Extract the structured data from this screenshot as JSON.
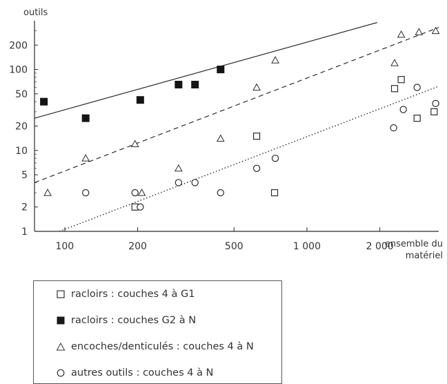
{
  "chart_data": {
    "type": "scatter",
    "ylabel": "outils",
    "xlabel_lines": [
      "ensemble du",
      "matériel"
    ],
    "xscale": "log",
    "yscale": "log",
    "xlim": [
      75,
      3500
    ],
    "ylim": [
      1,
      400
    ],
    "x_ticks": [
      {
        "value": 100,
        "label": "100"
      },
      {
        "value": 200,
        "label": "200"
      },
      {
        "value": 500,
        "label": "500"
      },
      {
        "value": 1000,
        "label": "1 000"
      },
      {
        "value": 2000,
        "label": "2 000"
      }
    ],
    "y_ticks": [
      {
        "value": 1,
        "label": "1"
      },
      {
        "value": 2,
        "label": "2"
      },
      {
        "value": 5,
        "label": "5"
      },
      {
        "value": 10,
        "label": "10"
      },
      {
        "value": 20,
        "label": "20"
      },
      {
        "value": 50,
        "label": "50"
      },
      {
        "value": 100,
        "label": "100"
      },
      {
        "value": 200,
        "label": "200"
      }
    ],
    "grid": false,
    "legend_position": "bottom-left",
    "series": [
      {
        "name": "racloirs : couches 4 à G1",
        "marker": "open-square",
        "points": [
          [
            195,
            2
          ],
          [
            620,
            15
          ],
          [
            735,
            3
          ],
          [
            2300,
            58
          ],
          [
            2450,
            75
          ],
          [
            2850,
            25
          ],
          [
            3350,
            30
          ]
        ]
      },
      {
        "name": "racloirs : couches G2 à N",
        "marker": "filled-square",
        "points": [
          [
            82,
            40
          ],
          [
            122,
            25
          ],
          [
            205,
            42
          ],
          [
            295,
            65
          ],
          [
            345,
            65
          ],
          [
            440,
            100
          ]
        ]
      },
      {
        "name": "encoches/denticulés : couches 4 à N",
        "marker": "open-triangle",
        "points": [
          [
            85,
            3
          ],
          [
            122,
            8
          ],
          [
            195,
            12
          ],
          [
            208,
            3
          ],
          [
            295,
            6
          ],
          [
            440,
            14
          ],
          [
            620,
            60
          ],
          [
            740,
            130
          ],
          [
            2300,
            120
          ],
          [
            2450,
            270
          ],
          [
            2900,
            290
          ],
          [
            3400,
            300
          ]
        ]
      },
      {
        "name": "autres outils : couches 4 à N",
        "marker": "open-circle",
        "points": [
          [
            122,
            3
          ],
          [
            195,
            3
          ],
          [
            205,
            2
          ],
          [
            295,
            4
          ],
          [
            345,
            4
          ],
          [
            440,
            3
          ],
          [
            620,
            6
          ],
          [
            740,
            8
          ],
          [
            2280,
            19
          ],
          [
            2500,
            32
          ],
          [
            2850,
            60
          ],
          [
            3400,
            38
          ]
        ]
      }
    ],
    "trend_lines": [
      {
        "style": "solid",
        "from": [
          75,
          25
        ],
        "to": [
          1950,
          380
        ]
      },
      {
        "style": "dashed",
        "from": [
          75,
          4
        ],
        "to": [
          3500,
          330
        ]
      },
      {
        "style": "dotted",
        "from": [
          95,
          1
        ],
        "to": [
          3500,
          62
        ]
      }
    ]
  }
}
